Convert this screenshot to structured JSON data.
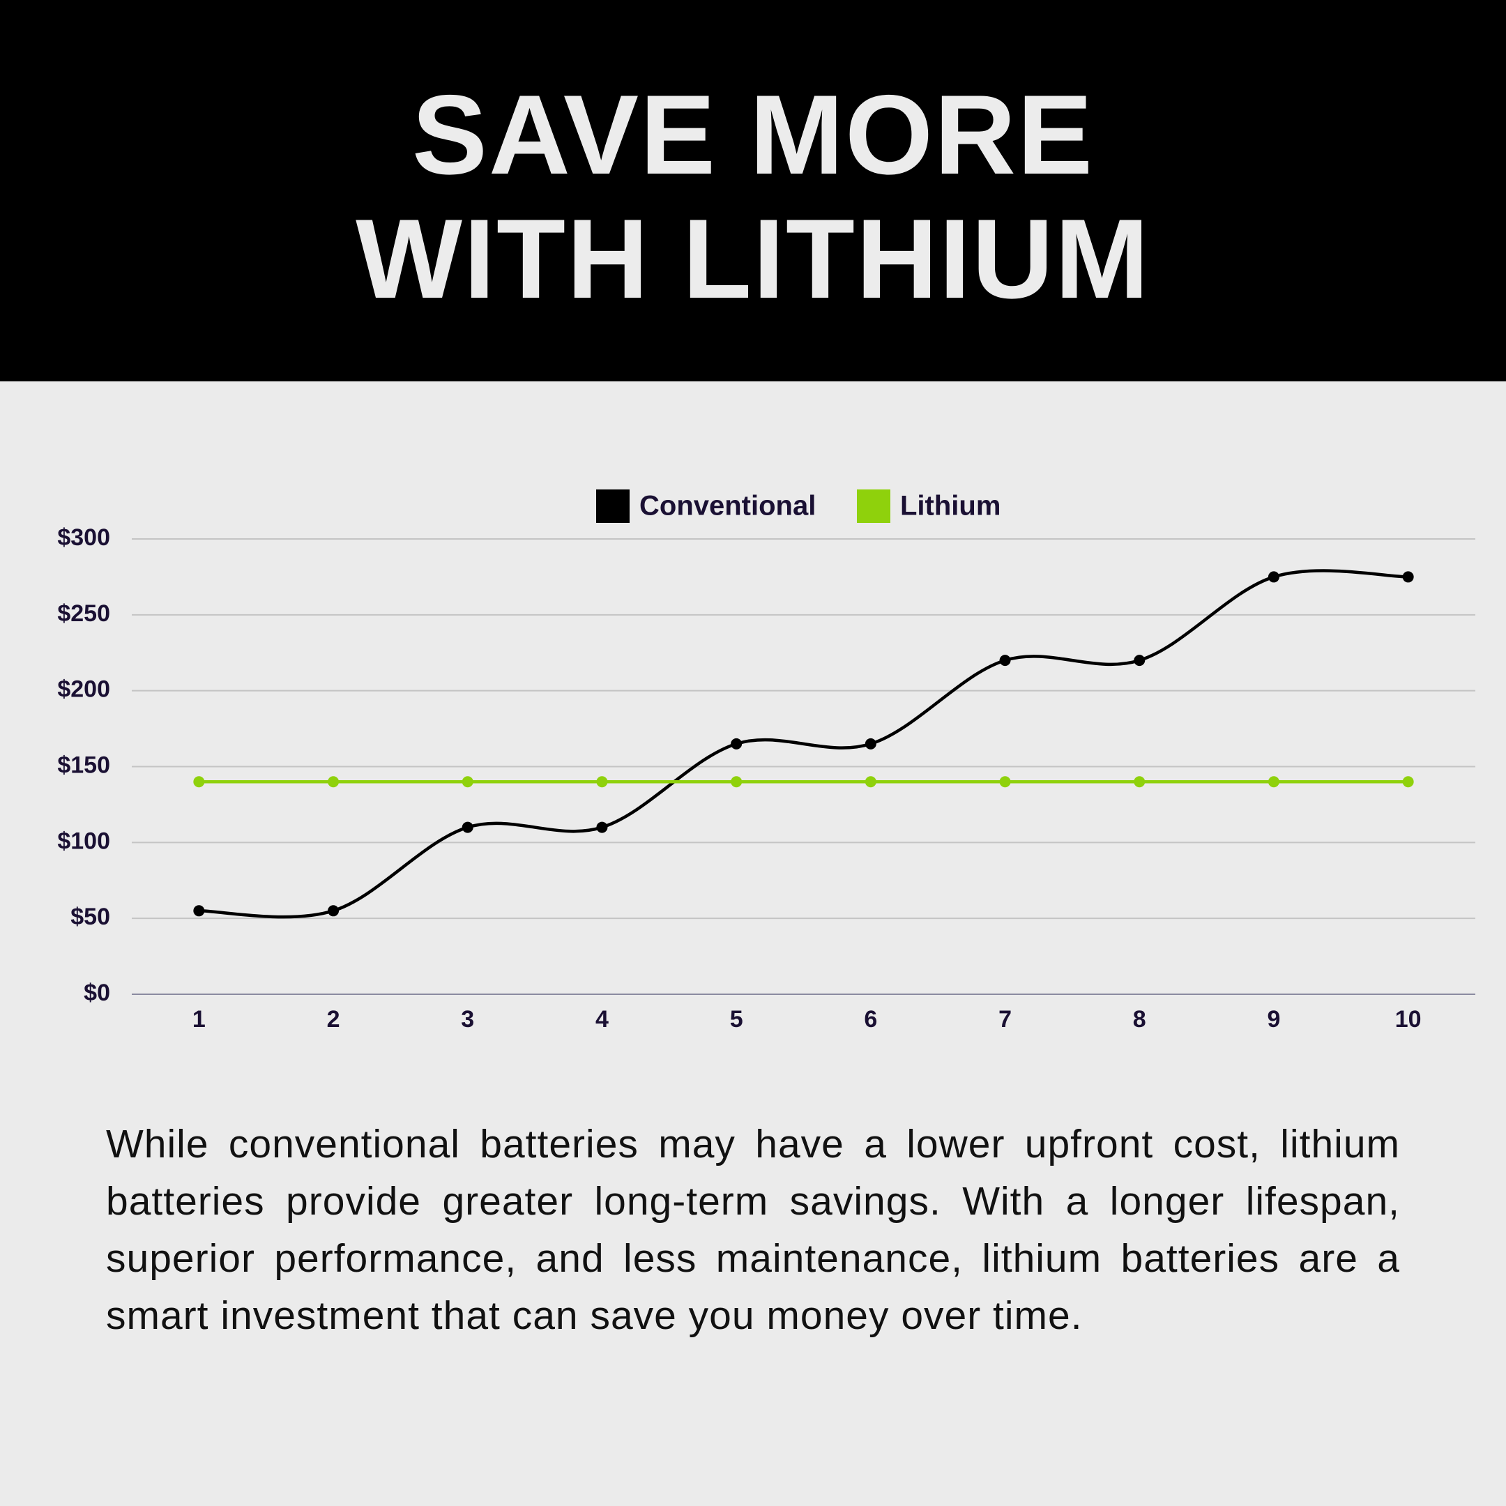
{
  "header": {
    "title": [
      "SAVE MORE",
      "WITH LITHIUM"
    ]
  },
  "chart_data": {
    "type": "line",
    "categories": [
      "1",
      "2",
      "3",
      "4",
      "5",
      "6",
      "7",
      "8",
      "9",
      "10"
    ],
    "series": [
      {
        "name": "Conventional",
        "color": "#000000",
        "values": [
          55,
          55,
          110,
          110,
          165,
          165,
          220,
          220,
          275,
          275
        ]
      },
      {
        "name": "Lithium",
        "color": "#8fd10c",
        "values": [
          140,
          140,
          140,
          140,
          140,
          140,
          140,
          140,
          140,
          140
        ]
      }
    ],
    "ylim": [
      0,
      300
    ],
    "yticks": [
      {
        "value": 0,
        "label": "$0"
      },
      {
        "value": 50,
        "label": "$50"
      },
      {
        "value": 100,
        "label": "$100"
      },
      {
        "value": 150,
        "label": "$150"
      },
      {
        "value": 200,
        "label": "$200"
      },
      {
        "value": 250,
        "label": "$250"
      },
      {
        "value": 300,
        "label": "$300"
      }
    ],
    "grid": true,
    "smooth": true,
    "legend": "top"
  },
  "body": {
    "text": "While conventional batteries may have a lower upfront cost, lithium batteries provide greater long-term savings. With a longer lifespan, superior performance, and less maintenance, lithium batteries are a smart investment that can save you money over time."
  }
}
